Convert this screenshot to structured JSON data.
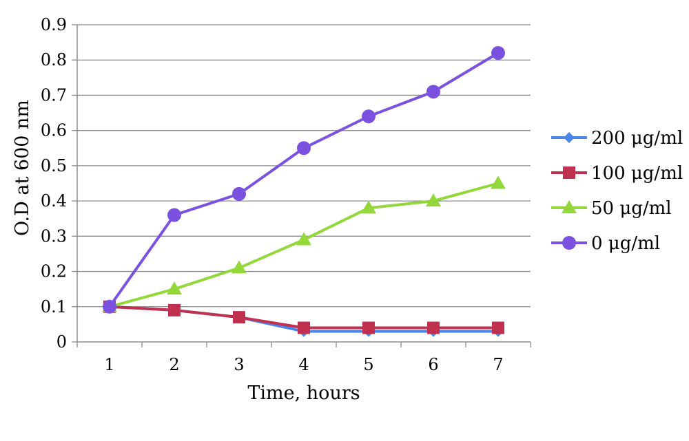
{
  "chart_data": {
    "type": "line",
    "title": "",
    "xlabel": "Time, hours",
    "ylabel": "O.D at 600 nm",
    "x": [
      "1",
      "2",
      "3",
      "4",
      "5",
      "6",
      "7"
    ],
    "ylim": [
      0,
      0.9
    ],
    "yticks": [
      "0",
      "0.1",
      "0.2",
      "0.3",
      "0.4",
      "0.5",
      "0.6",
      "0.7",
      "0.8",
      "0.9"
    ],
    "grid": "horizontal",
    "legend": "right",
    "series": [
      {
        "name": "200 μg/ml",
        "color": "#4A86E8",
        "marker": "diamond",
        "values": [
          0.1,
          0.09,
          0.07,
          0.03,
          0.03,
          0.03,
          0.03
        ]
      },
      {
        "name": "100 μg/ml",
        "color": "#C0304F",
        "marker": "square",
        "values": [
          0.1,
          0.09,
          0.07,
          0.04,
          0.04,
          0.04,
          0.04
        ]
      },
      {
        "name": "50 μg/ml",
        "color": "#92D83A",
        "marker": "triangle",
        "values": [
          0.1,
          0.15,
          0.21,
          0.29,
          0.38,
          0.4,
          0.45
        ]
      },
      {
        "name": "0 μg/ml",
        "color": "#7B52E0",
        "marker": "circle",
        "values": [
          0.1,
          0.36,
          0.42,
          0.55,
          0.64,
          0.71,
          0.82
        ]
      }
    ]
  }
}
